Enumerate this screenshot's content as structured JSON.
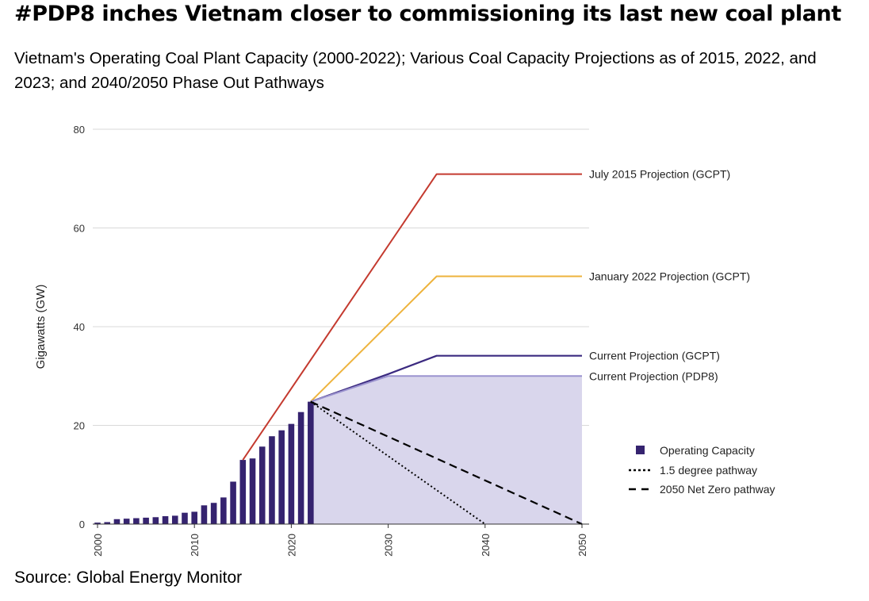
{
  "headline": "#PDP8 inches Vietnam closer to commissioning its last new coal plant",
  "subtitle": "Vietnam's Operating Coal Plant Capacity (2000-2022); Various Coal Capacity Projections as of 2015, 2022, and 2023; and 2040/2050 Phase Out Pathways",
  "source": "Source: Global Energy Monitor",
  "chart_data": {
    "type": "bar",
    "ylabel": "Gigawatts (GW)",
    "xlabel": "",
    "xlim": [
      2000,
      2050
    ],
    "ylim": [
      0,
      80
    ],
    "x_ticks": [
      2000,
      2010,
      2020,
      2030,
      2040,
      2050
    ],
    "y_ticks": [
      0,
      20,
      40,
      60,
      80
    ],
    "grid": "horizontal",
    "legend_position": "right",
    "colors": {
      "operating": "#35236f",
      "area_fill": "#d9d6ec",
      "area_line": "#9b93cf",
      "july2015": "#c43a2f",
      "jan2022": "#eeb33c",
      "gcpt_current": "#3b2a80",
      "grid": "#d9d9d9",
      "pathway": "#000000"
    },
    "operating_capacity": {
      "name": "Operating Capacity",
      "years": [
        2000,
        2001,
        2002,
        2003,
        2004,
        2005,
        2006,
        2007,
        2008,
        2009,
        2010,
        2011,
        2012,
        2013,
        2014,
        2015,
        2016,
        2017,
        2018,
        2019,
        2020,
        2021,
        2022
      ],
      "values": [
        0.3,
        0.4,
        1.0,
        1.1,
        1.2,
        1.3,
        1.4,
        1.6,
        1.7,
        2.3,
        2.5,
        3.8,
        4.3,
        5.4,
        8.6,
        13.0,
        13.3,
        15.7,
        17.8,
        19.0,
        20.3,
        22.7,
        24.8
      ]
    },
    "projections": [
      {
        "name": "July 2015 Projection (GCPT)",
        "points": [
          [
            2015,
            13.0
          ],
          [
            2035,
            70.9
          ],
          [
            2050,
            70.9
          ]
        ]
      },
      {
        "name": "January 2022 Projection (GCPT)",
        "points": [
          [
            2022,
            24.8
          ],
          [
            2035,
            50.2
          ],
          [
            2050,
            50.2
          ]
        ]
      },
      {
        "name": "Current Projection (GCPT)",
        "points": [
          [
            2022,
            24.8
          ],
          [
            2030,
            30.4
          ],
          [
            2035,
            34.1
          ],
          [
            2050,
            34.1
          ]
        ]
      },
      {
        "name": "Current Projection (PDP8)",
        "points": [
          [
            2022,
            24.8
          ],
          [
            2030,
            30.0
          ],
          [
            2050,
            30.0
          ]
        ]
      }
    ],
    "pathways": [
      {
        "name": "1.5 degree pathway",
        "style": "dotted",
        "points": [
          [
            2022,
            24.8
          ],
          [
            2040,
            0
          ]
        ]
      },
      {
        "name": "2050 Net Zero pathway",
        "style": "dashed",
        "points": [
          [
            2022,
            24.8
          ],
          [
            2050,
            0
          ]
        ]
      }
    ]
  }
}
